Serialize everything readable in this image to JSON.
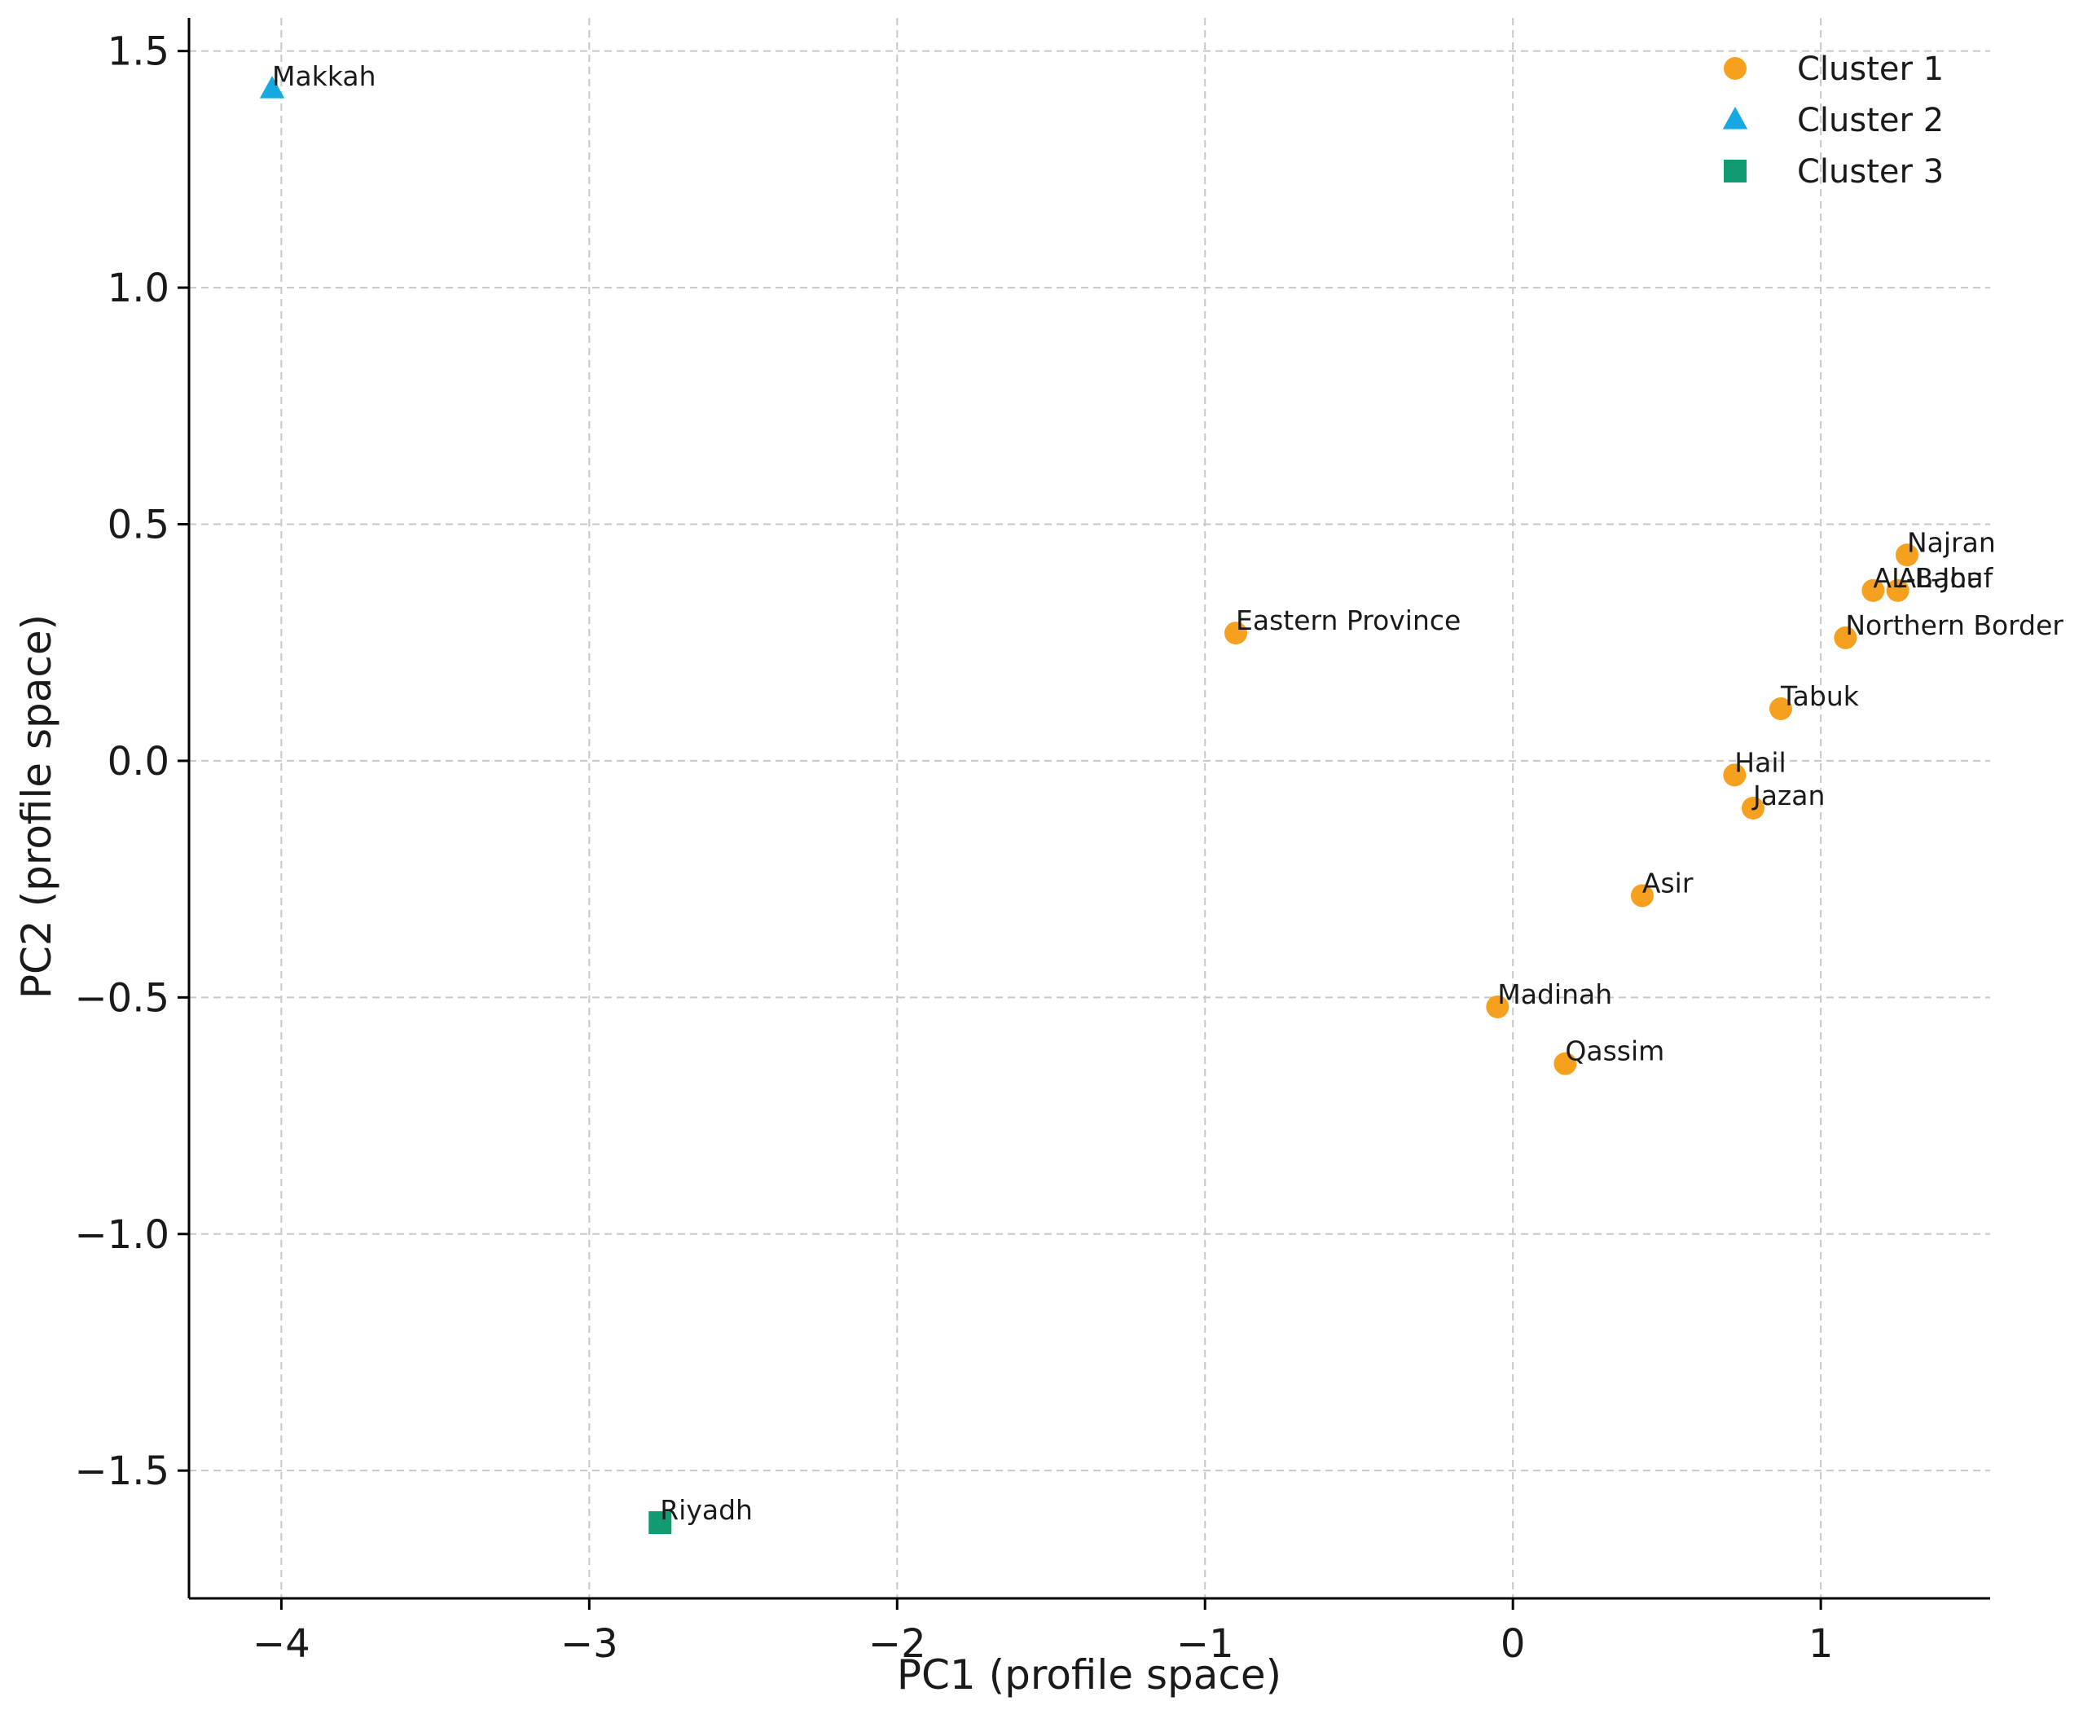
{
  "chart_data": {
    "type": "scatter",
    "xlabel": "PC1 (profile space)",
    "ylabel": "PC2 (profile space)",
    "xlim": [
      -4.3,
      1.55
    ],
    "ylim": [
      -1.77,
      1.57
    ],
    "grid": true,
    "legend_position": "top-right",
    "xticks": [
      {
        "value": -4,
        "label": "−4"
      },
      {
        "value": -3,
        "label": "−3"
      },
      {
        "value": -2,
        "label": "−2"
      },
      {
        "value": -1,
        "label": "−1"
      },
      {
        "value": 0,
        "label": "0"
      },
      {
        "value": 1,
        "label": "1"
      }
    ],
    "yticks": [
      {
        "value": 1.5,
        "label": "1.5"
      },
      {
        "value": 1.0,
        "label": "1.0"
      },
      {
        "value": 0.5,
        "label": "0.5"
      },
      {
        "value": 0.0,
        "label": "0.0"
      },
      {
        "value": -0.5,
        "label": "−0.5"
      },
      {
        "value": -1.0,
        "label": "−1.0"
      },
      {
        "value": -1.5,
        "label": "−1.5"
      }
    ],
    "series": [
      {
        "name": "Cluster 1",
        "marker": "circle",
        "color": "#F5A01E",
        "points": [
          {
            "label": "Eastern Province",
            "x": -0.9,
            "y": 0.27
          },
          {
            "label": "Najran",
            "x": 1.28,
            "y": 0.435
          },
          {
            "label": "AL-Baha",
            "x": 1.17,
            "y": 0.36
          },
          {
            "label": "AL-Jouf",
            "x": 1.25,
            "y": 0.36
          },
          {
            "label": "Northern Border",
            "x": 1.08,
            "y": 0.26
          },
          {
            "label": "Tabuk",
            "x": 0.87,
            "y": 0.11
          },
          {
            "label": "Hail",
            "x": 0.72,
            "y": -0.03
          },
          {
            "label": "Jazan",
            "x": 0.78,
            "y": -0.1
          },
          {
            "label": "Asir",
            "x": 0.42,
            "y": -0.285
          },
          {
            "label": "Madinah",
            "x": -0.05,
            "y": -0.52
          },
          {
            "label": "Qassim",
            "x": 0.17,
            "y": -0.64
          }
        ]
      },
      {
        "name": "Cluster 2",
        "marker": "triangle",
        "color": "#16A9E1",
        "points": [
          {
            "label": "Makkah",
            "x": -4.03,
            "y": 1.42
          }
        ]
      },
      {
        "name": "Cluster 3",
        "marker": "square",
        "color": "#129A72",
        "points": [
          {
            "label": "Riyadh",
            "x": -2.77,
            "y": -1.61
          }
        ]
      }
    ]
  }
}
